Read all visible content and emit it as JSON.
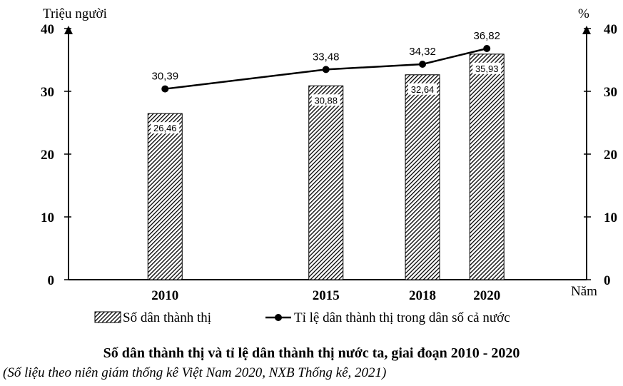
{
  "chart_data": {
    "type": "bar+line",
    "title": "Số dân thành thị và tỉ lệ dân thành thị nước ta, giai đoạn 2010 - 2020",
    "source": "(Số liệu theo niên giám thống kê Việt Nam 2020, NXB Thống kê, 2021)",
    "categories": [
      "2010",
      "2015",
      "2018",
      "2020"
    ],
    "x_unit": "Năm",
    "y_left": {
      "label": "Triệu người",
      "range": [
        0,
        40
      ],
      "ticks": [
        0,
        10,
        20,
        30,
        40
      ]
    },
    "y_right": {
      "label": "%",
      "range": [
        0,
        40
      ],
      "ticks": [
        0,
        10,
        20,
        30,
        40
      ]
    },
    "series": [
      {
        "name": "Số dân thành thị",
        "type": "bar",
        "axis": "left",
        "values": [
          26.46,
          30.88,
          32.64,
          35.93
        ],
        "labels": [
          "26,46",
          "30,88",
          "32,64",
          "35,93"
        ]
      },
      {
        "name": "Tỉ lệ dân thành thị trong dân số cả nước",
        "type": "line",
        "axis": "right",
        "values": [
          30.39,
          33.48,
          34.32,
          36.82
        ],
        "labels": [
          "30,39",
          "33,48",
          "34,32",
          "36,82"
        ]
      }
    ],
    "legend_position": "bottom"
  }
}
